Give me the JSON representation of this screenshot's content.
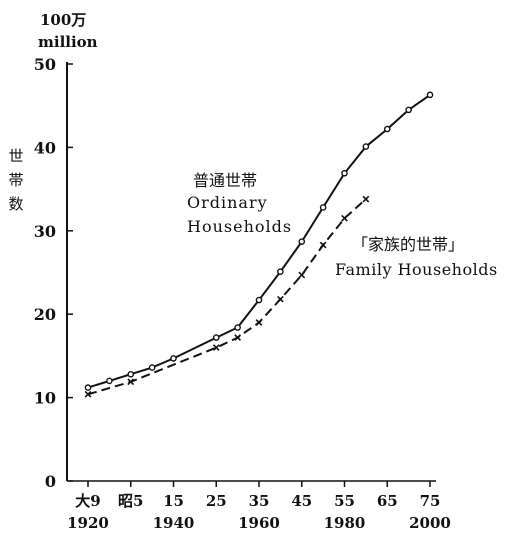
{
  "chart_data": {
    "type": "line",
    "title": "",
    "unit_line1": "100万",
    "unit_line2": "million",
    "ylabel_chars": [
      "世",
      "帯",
      "数"
    ],
    "xlabel": "",
    "ylim": [
      0,
      50
    ],
    "xlim": [
      1920,
      2000
    ],
    "grid": false,
    "y_ticks": [
      0,
      10,
      20,
      30,
      40,
      50
    ],
    "x_ticks": [
      {
        "value": 1920,
        "era_label": "大9",
        "year_label": "1920"
      },
      {
        "value": 1930,
        "era_label": "昭5",
        "year_label": ""
      },
      {
        "value": 1940,
        "era_label": "15",
        "year_label": "1940"
      },
      {
        "value": 1950,
        "era_label": "25",
        "year_label": ""
      },
      {
        "value": 1960,
        "era_label": "35",
        "year_label": "1960"
      },
      {
        "value": 1970,
        "era_label": "45",
        "year_label": ""
      },
      {
        "value": 1980,
        "era_label": "55",
        "year_label": "1980"
      },
      {
        "value": 1990,
        "era_label": "65",
        "year_label": ""
      },
      {
        "value": 2000,
        "era_label": "75",
        "year_label": "2000"
      }
    ],
    "series": [
      {
        "name_jp": "普通世帯",
        "name_en_line1": "Ordinary",
        "name_en_line2": "Households",
        "line_style": "solid",
        "marker": "circle",
        "x": [
          1920,
          1925,
          1930,
          1935,
          1940,
          1950,
          1955,
          1960,
          1965,
          1970,
          1975,
          1980,
          1985,
          1990,
          1995,
          2000
        ],
        "values": [
          11.2,
          12.0,
          12.8,
          13.6,
          14.7,
          17.2,
          18.4,
          21.7,
          25.1,
          28.7,
          32.8,
          36.9,
          40.1,
          42.2,
          44.5,
          46.3
        ]
      },
      {
        "name_jp": "「家族的世帯」",
        "name_en": "Family Households",
        "line_style": "dashed",
        "marker": "cross",
        "x": [
          1920,
          1930,
          1950,
          1955,
          1960,
          1965,
          1970,
          1975,
          1980,
          1985
        ],
        "values": [
          10.4,
          11.9,
          16.0,
          17.2,
          19.0,
          21.8,
          24.7,
          28.3,
          31.5,
          33.8
        ]
      }
    ]
  }
}
